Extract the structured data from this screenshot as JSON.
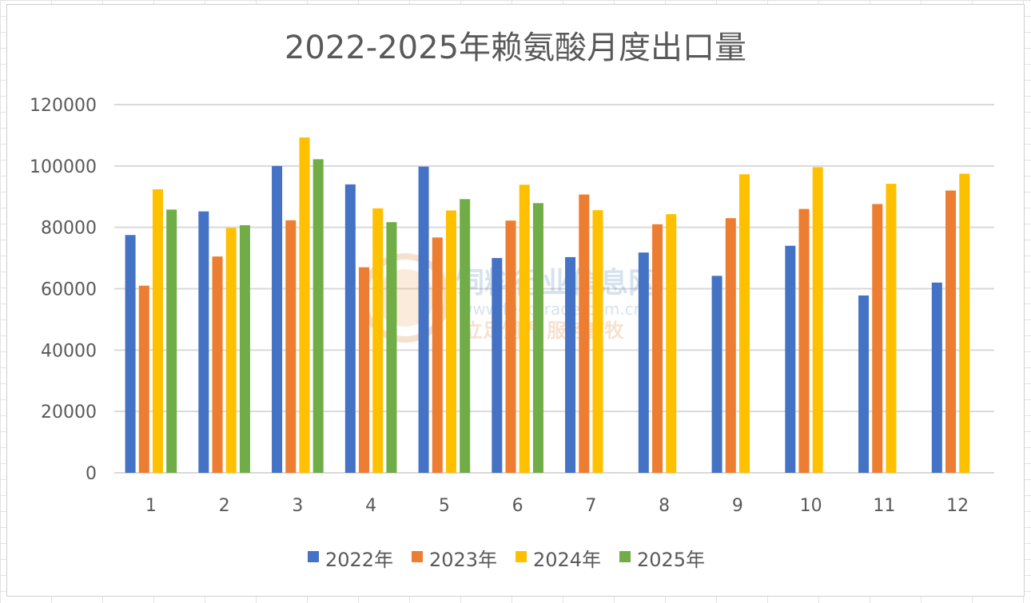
{
  "chart_data": {
    "type": "bar",
    "title": "2022-2025年赖氨酸月度出口量",
    "xlabel": "",
    "ylabel": "",
    "categories": [
      "1",
      "2",
      "3",
      "4",
      "5",
      "6",
      "7",
      "8",
      "9",
      "10",
      "11",
      "12"
    ],
    "ylim": [
      0,
      120000
    ],
    "yticks": [
      0,
      20000,
      40000,
      60000,
      80000,
      100000,
      120000
    ],
    "ytick_labels": [
      "0",
      "20000",
      "40000",
      "60000",
      "80000",
      "100000",
      "120000"
    ],
    "grid": true,
    "legend_position": "bottom",
    "series": [
      {
        "name": "2022年",
        "color": "#4472C4",
        "values": [
          77500,
          85200,
          100000,
          94000,
          99800,
          70000,
          70300,
          71800,
          64200,
          74000,
          57800,
          62000
        ]
      },
      {
        "name": "2023年",
        "color": "#ED7D31",
        "values": [
          61000,
          70500,
          82300,
          67000,
          76700,
          82200,
          90700,
          81000,
          83000,
          86000,
          87600,
          92000
        ]
      },
      {
        "name": "2024年",
        "color": "#FFC000",
        "values": [
          92400,
          79800,
          109300,
          86200,
          85500,
          93900,
          85600,
          84300,
          97300,
          99600,
          94200,
          97500
        ]
      },
      {
        "name": "2025年",
        "color": "#70AD47",
        "values": [
          85800,
          80700,
          102200,
          81700,
          89200,
          87900,
          null,
          null,
          null,
          null,
          null,
          null
        ]
      }
    ]
  },
  "watermark": {
    "line1": "饲料行业信息网",
    "line2": "www.feedtrade.com.cn",
    "line3": "立足饲界  服务畜牧"
  }
}
